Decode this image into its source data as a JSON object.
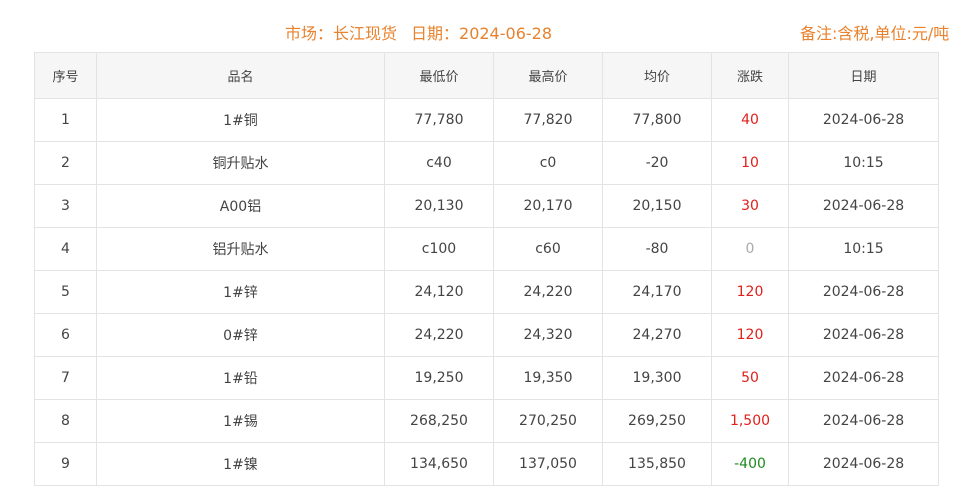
{
  "header": {
    "market": "市场：长江现货",
    "date": "日期：2024-06-28",
    "remark": "备注:含税,单位:元/吨"
  },
  "colors": {
    "accent": "#e8822e",
    "up": "#e0201b",
    "down": "#1e8a1e",
    "flat": "#aaaaaa"
  },
  "columns": [
    "序号",
    "品名",
    "最低价",
    "最高价",
    "均价",
    "涨跌",
    "日期"
  ],
  "rows": [
    {
      "no": "1",
      "name": "1#铜",
      "low": "77,780",
      "high": "77,820",
      "avg": "77,800",
      "change": "40",
      "dir": "up",
      "date": "2024-06-28"
    },
    {
      "no": "2",
      "name": "铜升贴水",
      "low": "c40",
      "high": "c0",
      "avg": "-20",
      "change": "10",
      "dir": "up",
      "date": "10:15"
    },
    {
      "no": "3",
      "name": "A00铝",
      "low": "20,130",
      "high": "20,170",
      "avg": "20,150",
      "change": "30",
      "dir": "up",
      "date": "2024-06-28"
    },
    {
      "no": "4",
      "name": "铝升贴水",
      "low": "c100",
      "high": "c60",
      "avg": "-80",
      "change": "0",
      "dir": "flat",
      "date": "10:15"
    },
    {
      "no": "5",
      "name": "1#锌",
      "low": "24,120",
      "high": "24,220",
      "avg": "24,170",
      "change": "120",
      "dir": "up",
      "date": "2024-06-28"
    },
    {
      "no": "6",
      "name": "0#锌",
      "low": "24,220",
      "high": "24,320",
      "avg": "24,270",
      "change": "120",
      "dir": "up",
      "date": "2024-06-28"
    },
    {
      "no": "7",
      "name": "1#铅",
      "low": "19,250",
      "high": "19,350",
      "avg": "19,300",
      "change": "50",
      "dir": "up",
      "date": "2024-06-28"
    },
    {
      "no": "8",
      "name": "1#锡",
      "low": "268,250",
      "high": "270,250",
      "avg": "269,250",
      "change": "1,500",
      "dir": "up",
      "date": "2024-06-28"
    },
    {
      "no": "9",
      "name": "1#镍",
      "low": "134,650",
      "high": "137,050",
      "avg": "135,850",
      "change": "-400",
      "dir": "down",
      "date": "2024-06-28"
    }
  ]
}
